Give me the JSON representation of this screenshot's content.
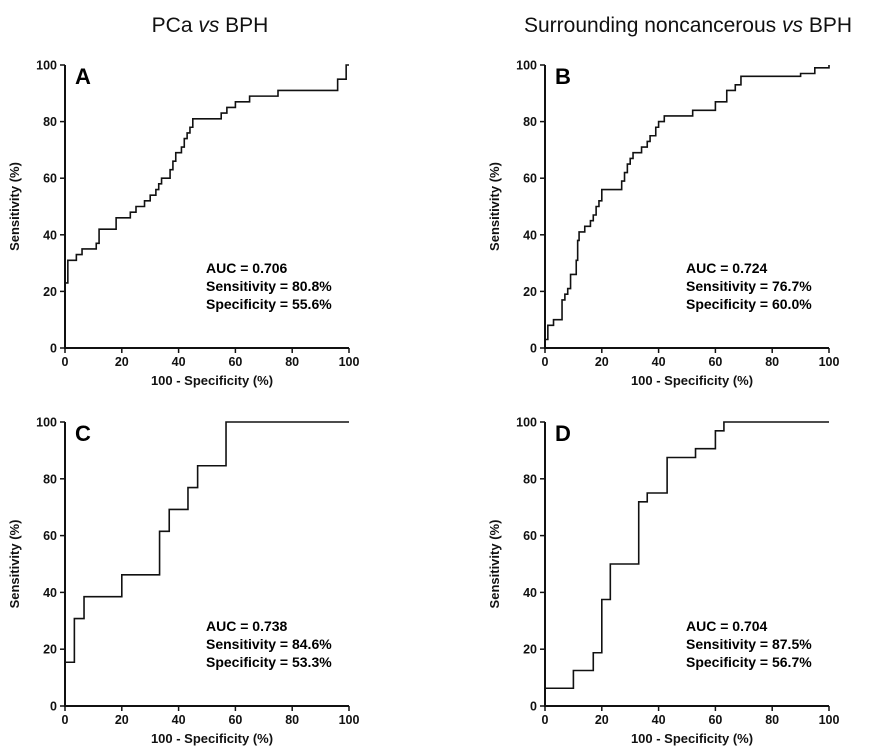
{
  "column_titles": [
    {
      "prefix": "PCa ",
      "italic": "vs",
      "suffix": " BPH"
    },
    {
      "prefix": "Surrounding noncancerous ",
      "italic": "vs",
      "suffix": " BPH"
    }
  ],
  "chart_data": [
    {
      "type": "line",
      "panel": "A",
      "xlabel": "100 - Specificity (%)",
      "ylabel": "Sensitivity (%)",
      "xlim": [
        0,
        100
      ],
      "ylim": [
        0,
        100
      ],
      "xticks": [
        0,
        20,
        40,
        60,
        80,
        100
      ],
      "yticks": [
        0,
        20,
        40,
        60,
        80,
        100
      ],
      "grid": false,
      "stats": [
        "AUC = 0.706",
        "Sensitivity = 80.8%",
        "Specificity = 55.6%"
      ],
      "points": [
        [
          0,
          0
        ],
        [
          0,
          23
        ],
        [
          1,
          23
        ],
        [
          1,
          31
        ],
        [
          4,
          31
        ],
        [
          4,
          33
        ],
        [
          6,
          33
        ],
        [
          6,
          35
        ],
        [
          11,
          35
        ],
        [
          11,
          37
        ],
        [
          12,
          37
        ],
        [
          12,
          42
        ],
        [
          18,
          42
        ],
        [
          18,
          46
        ],
        [
          23,
          46
        ],
        [
          23,
          48
        ],
        [
          25,
          48
        ],
        [
          25,
          50
        ],
        [
          28,
          50
        ],
        [
          28,
          52
        ],
        [
          30,
          52
        ],
        [
          30,
          54
        ],
        [
          32,
          54
        ],
        [
          32,
          56
        ],
        [
          33,
          56
        ],
        [
          33,
          58
        ],
        [
          34,
          58
        ],
        [
          34,
          60
        ],
        [
          37,
          60
        ],
        [
          37,
          63
        ],
        [
          38,
          63
        ],
        [
          38,
          66
        ],
        [
          39,
          66
        ],
        [
          39,
          69
        ],
        [
          41,
          69
        ],
        [
          41,
          71
        ],
        [
          42,
          71
        ],
        [
          42,
          74
        ],
        [
          43,
          74
        ],
        [
          43,
          76
        ],
        [
          44,
          76
        ],
        [
          44,
          78
        ],
        [
          45,
          78
        ],
        [
          45,
          81
        ],
        [
          55,
          81
        ],
        [
          55,
          83
        ],
        [
          57,
          83
        ],
        [
          57,
          85
        ],
        [
          60,
          85
        ],
        [
          60,
          87
        ],
        [
          65,
          87
        ],
        [
          65,
          89
        ],
        [
          75,
          89
        ],
        [
          75,
          91
        ],
        [
          96,
          91
        ],
        [
          96,
          95
        ],
        [
          99,
          95
        ],
        [
          99,
          100
        ],
        [
          100,
          100
        ]
      ]
    },
    {
      "type": "line",
      "panel": "B",
      "xlabel": "100 - Specificity (%)",
      "ylabel": "Sensitivity (%)",
      "xlim": [
        0,
        100
      ],
      "ylim": [
        0,
        100
      ],
      "xticks": [
        0,
        20,
        40,
        60,
        80,
        100
      ],
      "yticks": [
        0,
        20,
        40,
        60,
        80,
        100
      ],
      "grid": false,
      "stats": [
        "AUC = 0.724",
        "Sensitivity = 76.7%",
        "Specificity = 60.0%"
      ],
      "points": [
        [
          0,
          0
        ],
        [
          0,
          3
        ],
        [
          1,
          3
        ],
        [
          1,
          8
        ],
        [
          3,
          8
        ],
        [
          3,
          10
        ],
        [
          6,
          10
        ],
        [
          6,
          17
        ],
        [
          7,
          17
        ],
        [
          7,
          19
        ],
        [
          8,
          19
        ],
        [
          8,
          21
        ],
        [
          9,
          21
        ],
        [
          9,
          26
        ],
        [
          11,
          26
        ],
        [
          11,
          31
        ],
        [
          11.5,
          31
        ],
        [
          11.5,
          38
        ],
        [
          12,
          38
        ],
        [
          12,
          41
        ],
        [
          14,
          41
        ],
        [
          14,
          43
        ],
        [
          16,
          43
        ],
        [
          16,
          45
        ],
        [
          17,
          45
        ],
        [
          17,
          47
        ],
        [
          18,
          47
        ],
        [
          18,
          50
        ],
        [
          19,
          50
        ],
        [
          19,
          52
        ],
        [
          20,
          52
        ],
        [
          20,
          56
        ],
        [
          27,
          56
        ],
        [
          27,
          59
        ],
        [
          28,
          59
        ],
        [
          28,
          62
        ],
        [
          29,
          62
        ],
        [
          29,
          65
        ],
        [
          30,
          65
        ],
        [
          30,
          67
        ],
        [
          31,
          67
        ],
        [
          31,
          69
        ],
        [
          34,
          69
        ],
        [
          34,
          71
        ],
        [
          36,
          71
        ],
        [
          36,
          73
        ],
        [
          37,
          73
        ],
        [
          37,
          75
        ],
        [
          39,
          75
        ],
        [
          39,
          78
        ],
        [
          40,
          78
        ],
        [
          40,
          80
        ],
        [
          42,
          80
        ],
        [
          42,
          82
        ],
        [
          52,
          82
        ],
        [
          52,
          84
        ],
        [
          60,
          84
        ],
        [
          60,
          87
        ],
        [
          64,
          87
        ],
        [
          64,
          91
        ],
        [
          67,
          91
        ],
        [
          67,
          93
        ],
        [
          69,
          93
        ],
        [
          69,
          96
        ],
        [
          90,
          96
        ],
        [
          90,
          97
        ],
        [
          95,
          97
        ],
        [
          95,
          99
        ],
        [
          100,
          99
        ],
        [
          100,
          100
        ]
      ]
    },
    {
      "type": "line",
      "panel": "C",
      "xlabel": "100 - Specificity (%)",
      "ylabel": "Sensitivity (%)",
      "xlim": [
        0,
        100
      ],
      "ylim": [
        0,
        100
      ],
      "xticks": [
        0,
        20,
        40,
        60,
        80,
        100
      ],
      "yticks": [
        0,
        20,
        40,
        60,
        80,
        100
      ],
      "grid": false,
      "stats": [
        "AUC = 0.738",
        "Sensitivity = 84.6%",
        "Specificity = 53.3%"
      ],
      "points": [
        [
          0,
          0
        ],
        [
          0,
          15.4
        ],
        [
          3.3,
          15.4
        ],
        [
          3.3,
          30.8
        ],
        [
          6.7,
          30.8
        ],
        [
          6.7,
          38.5
        ],
        [
          20,
          38.5
        ],
        [
          20,
          46.2
        ],
        [
          33.3,
          46.2
        ],
        [
          33.3,
          61.5
        ],
        [
          36.7,
          61.5
        ],
        [
          36.7,
          69.2
        ],
        [
          43.3,
          69.2
        ],
        [
          43.3,
          76.9
        ],
        [
          46.7,
          76.9
        ],
        [
          46.7,
          84.6
        ],
        [
          56.7,
          84.6
        ],
        [
          56.7,
          100
        ],
        [
          100,
          100
        ]
      ]
    },
    {
      "type": "line",
      "panel": "D",
      "xlabel": "100 - Specificity (%)",
      "ylabel": "Sensitivity (%)",
      "xlim": [
        0,
        100
      ],
      "ylim": [
        0,
        100
      ],
      "xticks": [
        0,
        20,
        40,
        60,
        80,
        100
      ],
      "yticks": [
        0,
        20,
        40,
        60,
        80,
        100
      ],
      "grid": false,
      "stats": [
        "AUC = 0.704",
        "Sensitivity = 87.5%",
        "Specificity = 56.7%"
      ],
      "points": [
        [
          0,
          0
        ],
        [
          0,
          6.25
        ],
        [
          10,
          6.25
        ],
        [
          10,
          12.5
        ],
        [
          17,
          12.5
        ],
        [
          17,
          18.75
        ],
        [
          20,
          18.75
        ],
        [
          20,
          37.5
        ],
        [
          23,
          37.5
        ],
        [
          23,
          50
        ],
        [
          33,
          50
        ],
        [
          33,
          71.9
        ],
        [
          36,
          71.9
        ],
        [
          36,
          75
        ],
        [
          43,
          75
        ],
        [
          43,
          87.5
        ],
        [
          53,
          87.5
        ],
        [
          53,
          90.6
        ],
        [
          60,
          90.6
        ],
        [
          60,
          96.9
        ],
        [
          63,
          96.9
        ],
        [
          63,
          100
        ],
        [
          100,
          100
        ]
      ]
    }
  ]
}
